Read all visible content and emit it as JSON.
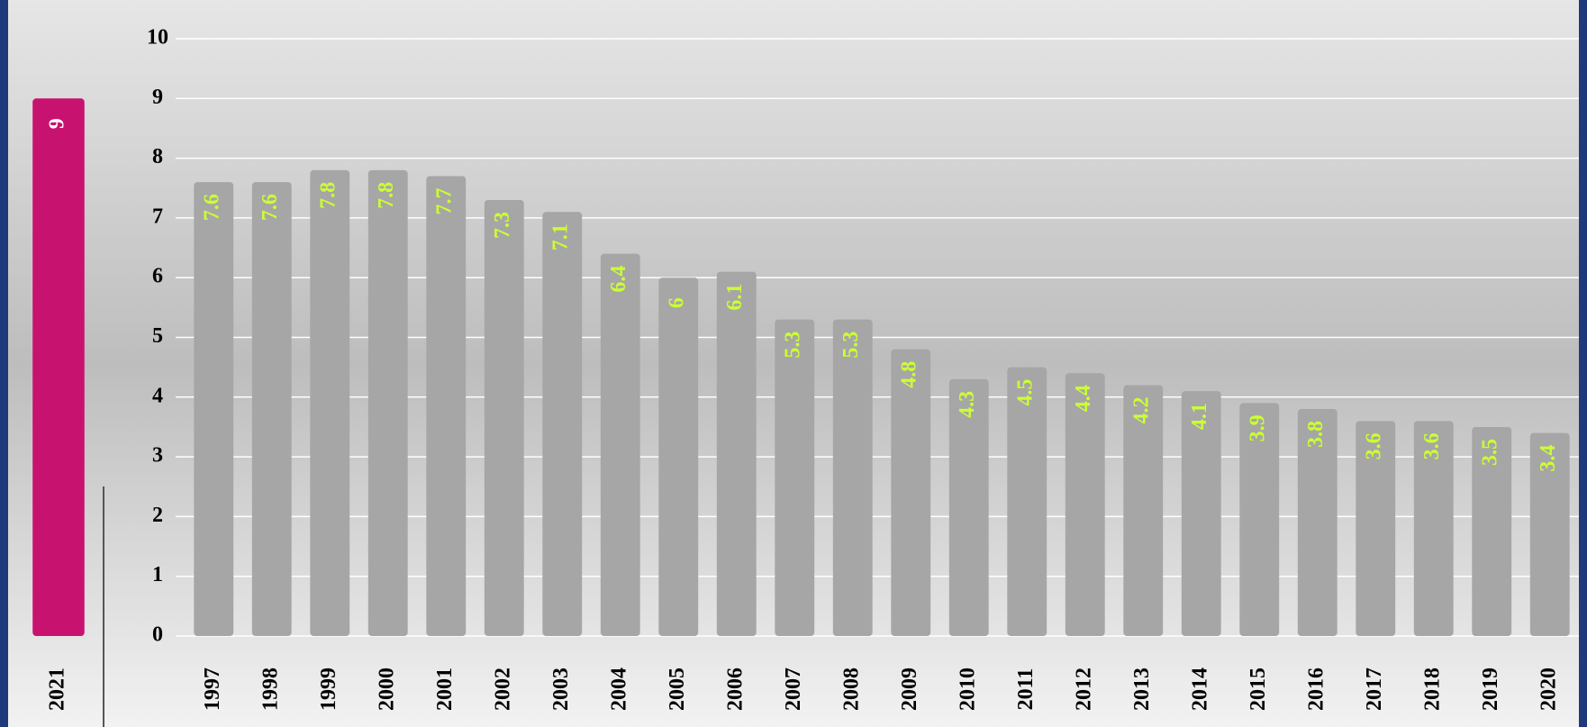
{
  "chart_data": [
    {
      "type": "bar",
      "categories": [
        "2021"
      ],
      "values": [
        9
      ],
      "color": "#c8126f",
      "ylim": [
        0,
        10
      ]
    },
    {
      "type": "bar",
      "categories": [
        "1997",
        "1998",
        "1999",
        "2000",
        "2001",
        "2002",
        "2003",
        "2004",
        "2005",
        "2006",
        "2007",
        "2008",
        "2009",
        "2010",
        "2011",
        "2012",
        "2013",
        "2014",
        "2015",
        "2016",
        "2017",
        "2018",
        "2019",
        "2020"
      ],
      "values": [
        7.6,
        7.6,
        7.8,
        7.8,
        7.7,
        7.3,
        7.1,
        6.4,
        6,
        6.1,
        5.3,
        5.3,
        4.8,
        4.3,
        4.5,
        4.4,
        4.2,
        4.1,
        3.9,
        3.8,
        3.6,
        3.6,
        3.5,
        3.4
      ],
      "color": "#a6a6a6",
      "label_color": "#ccff33",
      "ylim": [
        0,
        10
      ],
      "yticks": [
        0,
        1,
        2,
        3,
        4,
        5,
        6,
        7,
        8,
        9,
        10
      ],
      "grid": true
    }
  ]
}
